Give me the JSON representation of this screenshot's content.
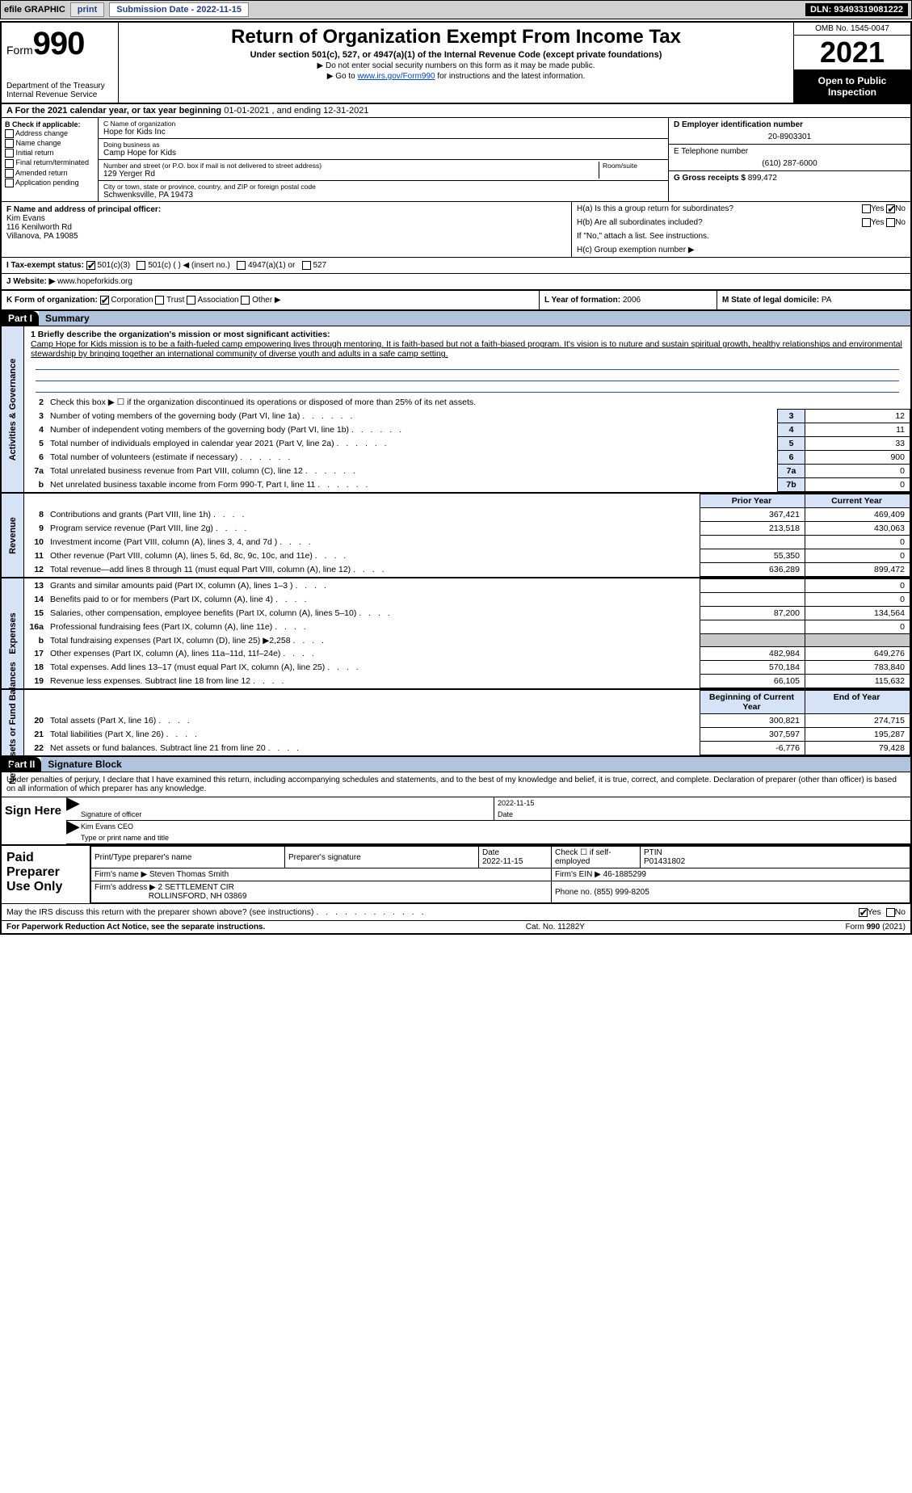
{
  "topbar": {
    "efile": "efile GRAPHIC",
    "print": "print",
    "sub_label": "Submission Date - ",
    "sub_date": "2022-11-15",
    "dln_label": "DLN: ",
    "dln": "93493319081222"
  },
  "header": {
    "form_word": "Form",
    "form_num": "990",
    "dept": "Department of the Treasury",
    "irs": "Internal Revenue Service",
    "title": "Return of Organization Exempt From Income Tax",
    "subtitle": "Under section 501(c), 527, or 4947(a)(1) of the Internal Revenue Code (except private foundations)",
    "note1": "▶ Do not enter social security numbers on this form as it may be made public.",
    "note2_pre": "▶ Go to ",
    "note2_link": "www.irs.gov/Form990",
    "note2_post": " for instructions and the latest information.",
    "omb": "OMB No. 1545-0047",
    "year": "2021",
    "otp": "Open to Public Inspection"
  },
  "cal": {
    "text_a": "A For the 2021 calendar year, or tax year beginning ",
    "begin": "01-01-2021",
    "text_b": "   , and ending ",
    "end": "12-31-2021"
  },
  "blockB": {
    "label": "B Check if applicable:",
    "opts": [
      "Address change",
      "Name change",
      "Initial return",
      "Final return/terminated",
      "Amended return",
      "Application pending"
    ]
  },
  "blockC": {
    "name_label": "C Name of organization",
    "name": "Hope for Kids Inc",
    "dba_label": "Doing business as",
    "dba": "Camp Hope for Kids",
    "addr_label": "Number and street (or P.O. box if mail is not delivered to street address)",
    "room_label": "Room/suite",
    "addr": "129 Yerger Rd",
    "city_label": "City or town, state or province, country, and ZIP or foreign postal code",
    "city": "Schwenksville, PA  19473"
  },
  "blockD": {
    "ein_label": "D Employer identification number",
    "ein": "20-8903301",
    "phone_label": "E Telephone number",
    "phone": "(610) 287-6000",
    "gross_label": "G Gross receipts $ ",
    "gross": "899,472"
  },
  "blockF": {
    "label": "F Name and address of principal officer:",
    "name": "Kim Evans",
    "addr1": "116 Kenilworth Rd",
    "addr2": "Villanova, PA  19085"
  },
  "blockH": {
    "ha": "H(a)  Is this a group return for subordinates?",
    "ha_yes": "Yes",
    "ha_no": "No",
    "hb": "H(b)  Are all subordinates included?",
    "hb_yes": "Yes",
    "hb_no": "No",
    "hb_note": "If \"No,\" attach a list. See instructions.",
    "hc": "H(c)  Group exemption number ▶"
  },
  "tax_status": {
    "label": "I  Tax-exempt status:",
    "o1": "501(c)(3)",
    "o2": "501(c) (   ) ◀ (insert no.)",
    "o3": "4947(a)(1) or",
    "o4": "527"
  },
  "website": {
    "label": "J  Website: ▶  ",
    "url": "www.hopeforkids.org"
  },
  "korg": {
    "label": "K Form of organization:",
    "o1": "Corporation",
    "o2": "Trust",
    "o3": "Association",
    "o4": "Other ▶"
  },
  "l": {
    "label": "L Year of formation: ",
    "val": "2006"
  },
  "m": {
    "label": "M State of legal domicile: ",
    "val": "PA"
  },
  "part1": {
    "hdr": "Part I",
    "title": "Summary",
    "side_gov": "Activities & Governance",
    "side_rev": "Revenue",
    "side_exp": "Expenses",
    "side_net": "Net Assets or Fund Balances",
    "l1_label": "1  Briefly describe the organization's mission or most significant activities:",
    "l1_text": "Camp Hope for Kids mission is to be a faith-fueled camp empowering lives through mentoring. It is faith-based but not a faith-biased program. It's vision is to nuture and sustain spiritual growth, healthy relationships and environmental stewardship by bringing together an international community of diverse youth and adults in a safe camp setting.",
    "l2": "Check this box ▶ ☐  if the organization discontinued its operations or disposed of more than 25% of its net assets.",
    "rows_gov": [
      {
        "n": "3",
        "t": "Number of voting members of the governing body (Part VI, line 1a)",
        "box": "3",
        "v": "12"
      },
      {
        "n": "4",
        "t": "Number of independent voting members of the governing body (Part VI, line 1b)",
        "box": "4",
        "v": "11"
      },
      {
        "n": "5",
        "t": "Total number of individuals employed in calendar year 2021 (Part V, line 2a)",
        "box": "5",
        "v": "33"
      },
      {
        "n": "6",
        "t": "Total number of volunteers (estimate if necessary)",
        "box": "6",
        "v": "900"
      },
      {
        "n": "7a",
        "t": "Total unrelated business revenue from Part VIII, column (C), line 12",
        "box": "7a",
        "v": "0"
      },
      {
        "n": "b",
        "t": "Net unrelated business taxable income from Form 990-T, Part I, line 11",
        "box": "7b",
        "v": "0"
      }
    ],
    "hdr_py": "Prior Year",
    "hdr_cy": "Current Year",
    "rows_rev": [
      {
        "n": "8",
        "t": "Contributions and grants (Part VIII, line 1h)",
        "py": "367,421",
        "cy": "469,409"
      },
      {
        "n": "9",
        "t": "Program service revenue (Part VIII, line 2g)",
        "py": "213,518",
        "cy": "430,063"
      },
      {
        "n": "10",
        "t": "Investment income (Part VIII, column (A), lines 3, 4, and 7d )",
        "py": "",
        "cy": "0"
      },
      {
        "n": "11",
        "t": "Other revenue (Part VIII, column (A), lines 5, 6d, 8c, 9c, 10c, and 11e)",
        "py": "55,350",
        "cy": "0"
      },
      {
        "n": "12",
        "t": "Total revenue—add lines 8 through 11 (must equal Part VIII, column (A), line 12)",
        "py": "636,289",
        "cy": "899,472"
      }
    ],
    "rows_exp": [
      {
        "n": "13",
        "t": "Grants and similar amounts paid (Part IX, column (A), lines 1–3 )",
        "py": "",
        "cy": "0"
      },
      {
        "n": "14",
        "t": "Benefits paid to or for members (Part IX, column (A), line 4)",
        "py": "",
        "cy": "0"
      },
      {
        "n": "15",
        "t": "Salaries, other compensation, employee benefits (Part IX, column (A), lines 5–10)",
        "py": "87,200",
        "cy": "134,564"
      },
      {
        "n": "16a",
        "t": "Professional fundraising fees (Part IX, column (A), line 11e)",
        "py": "",
        "cy": "0"
      },
      {
        "n": "b",
        "t": "Total fundraising expenses (Part IX, column (D), line 25) ▶2,258",
        "py": "gray",
        "cy": "gray"
      },
      {
        "n": "17",
        "t": "Other expenses (Part IX, column (A), lines 11a–11d, 11f–24e)",
        "py": "482,984",
        "cy": "649,276"
      },
      {
        "n": "18",
        "t": "Total expenses. Add lines 13–17 (must equal Part IX, column (A), line 25)",
        "py": "570,184",
        "cy": "783,840"
      },
      {
        "n": "19",
        "t": "Revenue less expenses. Subtract line 18 from line 12",
        "py": "66,105",
        "cy": "115,632"
      }
    ],
    "hdr_boy": "Beginning of Current Year",
    "hdr_eoy": "End of Year",
    "rows_net": [
      {
        "n": "20",
        "t": "Total assets (Part X, line 16)",
        "py": "300,821",
        "cy": "274,715"
      },
      {
        "n": "21",
        "t": "Total liabilities (Part X, line 26)",
        "py": "307,597",
        "cy": "195,287"
      },
      {
        "n": "22",
        "t": "Net assets or fund balances. Subtract line 21 from line 20",
        "py": "-6,776",
        "cy": "79,428"
      }
    ]
  },
  "part2": {
    "hdr": "Part II",
    "title": "Signature Block",
    "decl": "Under penalties of perjury, I declare that I have examined this return, including accompanying schedules and statements, and to the best of my knowledge and belief, it is true, correct, and complete. Declaration of preparer (other than officer) is based on all information of which preparer has any knowledge.",
    "sign_here": "Sign Here",
    "sig_officer": "Signature of officer",
    "sig_date": "Date",
    "sig_date_val": "2022-11-15",
    "officer_name": "Kim Evans CEO",
    "officer_label": "Type or print name and title",
    "paid": "Paid Preparer Use Only",
    "p_name_label": "Print/Type preparer's name",
    "p_sig_label": "Preparer's signature",
    "p_date_label": "Date",
    "p_date": "2022-11-15",
    "p_check": "Check ☐ if self-employed",
    "ptin_label": "PTIN",
    "ptin": "P01431802",
    "firm_name_label": "Firm's name    ▶ ",
    "firm_name": "Steven Thomas Smith",
    "firm_ein_label": "Firm's EIN ▶ ",
    "firm_ein": "46-1885299",
    "firm_addr_label": "Firm's address ▶ ",
    "firm_addr1": "2 SETTLEMENT CIR",
    "firm_addr2": "ROLLINSFORD, NH  03869",
    "firm_phone_label": "Phone no. ",
    "firm_phone": "(855) 999-8205",
    "discuss": "May the IRS discuss this return with the preparer shown above? (see instructions)",
    "yes": "Yes",
    "no": "No"
  },
  "footer": {
    "left": "For Paperwork Reduction Act Notice, see the separate instructions.",
    "mid": "Cat. No. 11282Y",
    "right": "Form 990 (2021)"
  },
  "colors": {
    "topbar_bg": "#d0d0d0",
    "blue_line": "#2a4db0",
    "shade": "#d6e2f5",
    "gray": "#c8c8c8"
  }
}
